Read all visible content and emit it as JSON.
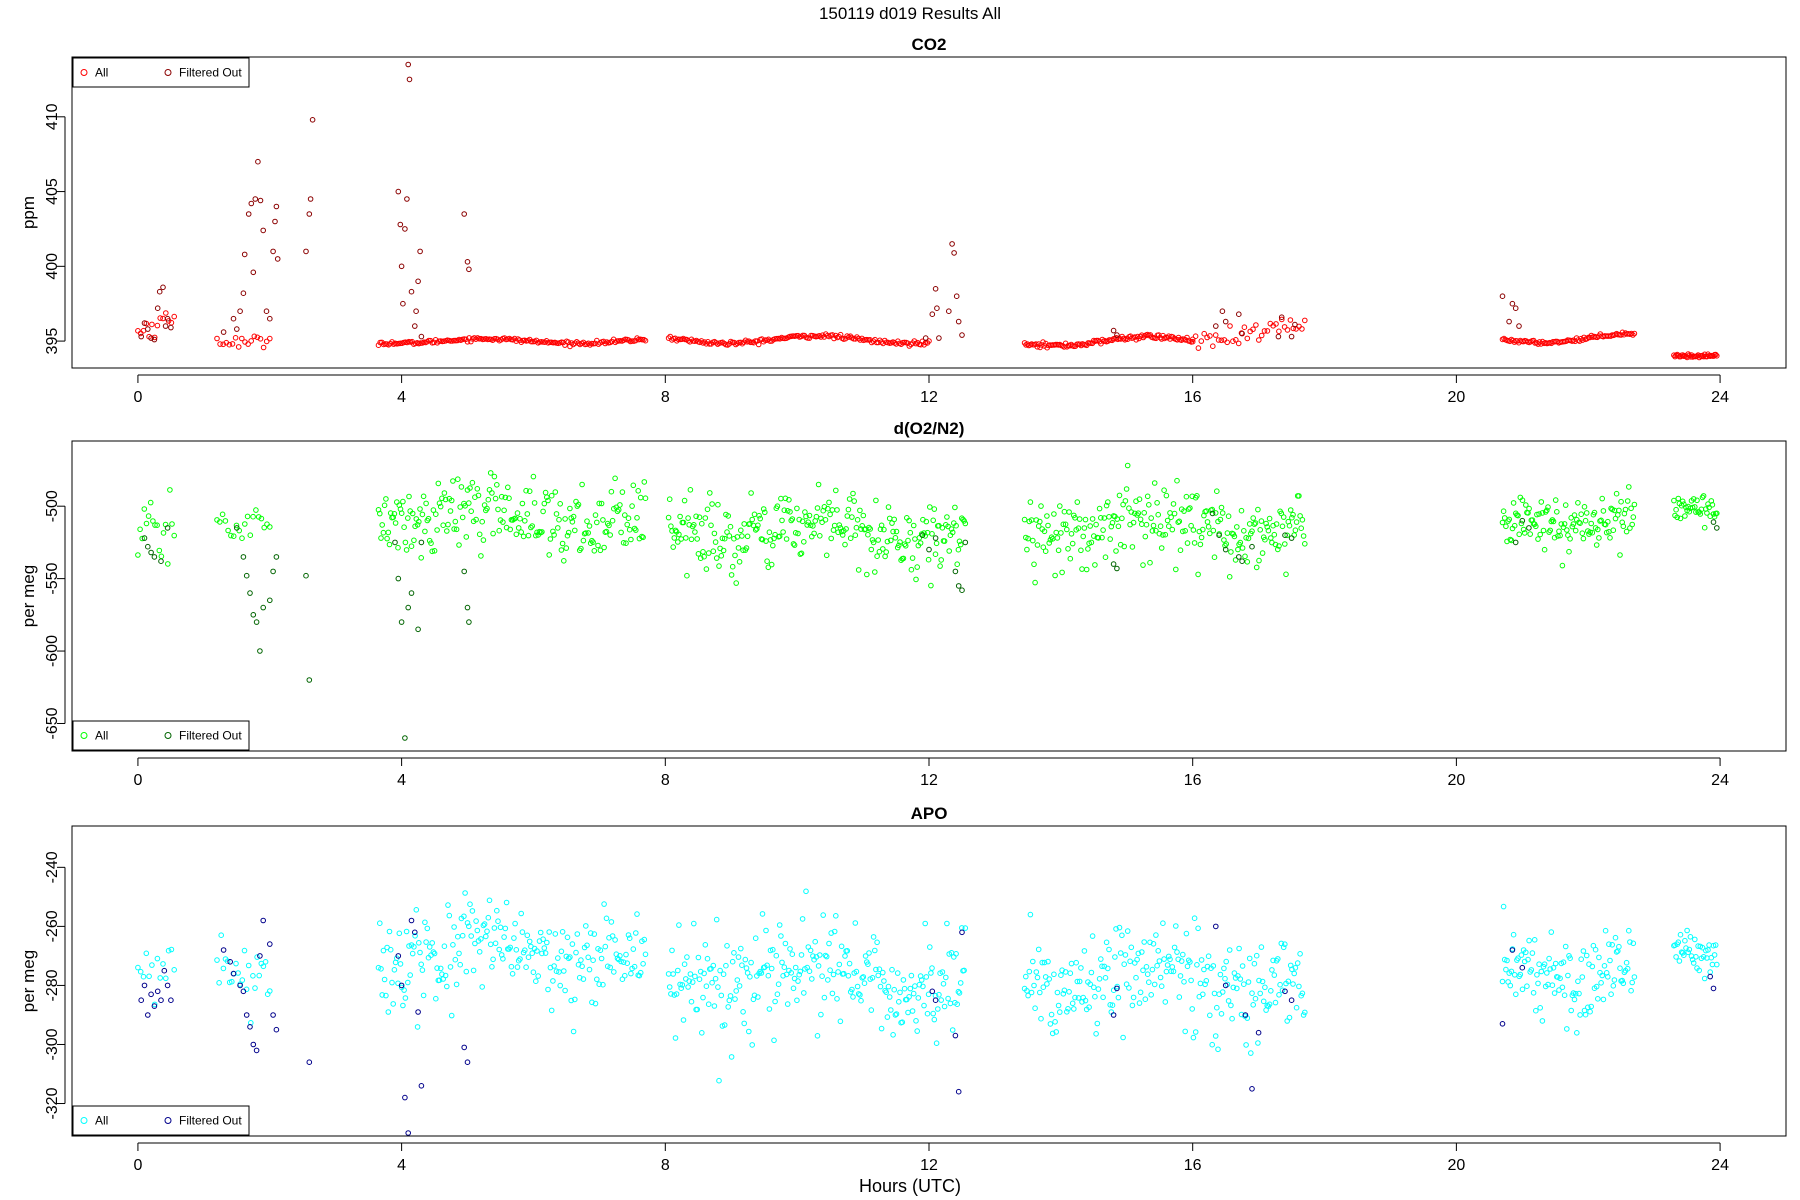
{
  "figure_title": "150119   d019   Results All",
  "x_label": "Hours (UTC)",
  "chart_data": [
    {
      "type": "scatter",
      "title": "CO2",
      "ylabel": "ppm",
      "xlim": [
        -1.0,
        25.0
      ],
      "ylim": [
        393.2,
        414.0
      ],
      "xticks": [
        0,
        4,
        8,
        12,
        16,
        20,
        24
      ],
      "yticks": [
        395,
        400,
        405,
        410
      ],
      "ytick_labels": [
        "395",
        "400",
        "405",
        "410"
      ],
      "legend": {
        "placement": "top-left",
        "entries": [
          "All",
          "Filtered Out"
        ]
      },
      "colors": {
        "all": "#ff0000",
        "filtered": "#8b0000"
      },
      "segments": [
        {
          "t0": 0.0,
          "t1": 0.55,
          "n": 14,
          "base": 395.6,
          "amp": 0.9,
          "noise": 0.4
        },
        {
          "t0": 1.2,
          "t1": 2.0,
          "n": 18,
          "base": 395.3,
          "amp": 0.4,
          "noise": 0.2
        },
        {
          "t0": 3.65,
          "t1": 7.7,
          "n": 160,
          "base": 395.0,
          "amp": 0.15,
          "noise": 0.06
        },
        {
          "t0": 8.05,
          "t1": 12.0,
          "n": 160,
          "base": 395.1,
          "amp": 0.25,
          "noise": 0.07
        },
        {
          "t0": 13.45,
          "t1": 16.0,
          "n": 120,
          "base": 395.0,
          "amp": 0.3,
          "noise": 0.08
        },
        {
          "t0": 16.0,
          "t1": 17.7,
          "n": 40,
          "base": 395.5,
          "amp": 0.5,
          "noise": 0.3
        },
        {
          "t0": 20.7,
          "t1": 22.7,
          "n": 90,
          "base": 395.2,
          "amp": 0.3,
          "noise": 0.06
        },
        {
          "t0": 23.3,
          "t1": 23.95,
          "n": 40,
          "base": 394.2,
          "amp": 0.2,
          "noise": 0.05
        }
      ],
      "filtered": [
        [
          0.05,
          395.3
        ],
        [
          0.1,
          396.2
        ],
        [
          0.15,
          395.8
        ],
        [
          0.2,
          395.2
        ],
        [
          0.25,
          395.1
        ],
        [
          0.3,
          397.2
        ],
        [
          0.33,
          398.3
        ],
        [
          0.38,
          398.6
        ],
        [
          0.42,
          396.0
        ],
        [
          0.45,
          396.5
        ],
        [
          0.5,
          395.9
        ],
        [
          1.3,
          395.6
        ],
        [
          1.45,
          396.5
        ],
        [
          1.5,
          395.8
        ],
        [
          1.55,
          397.0
        ],
        [
          1.6,
          398.2
        ],
        [
          1.62,
          400.8
        ],
        [
          1.68,
          403.5
        ],
        [
          1.72,
          404.2
        ],
        [
          1.75,
          399.6
        ],
        [
          1.78,
          404.5
        ],
        [
          1.82,
          407.0
        ],
        [
          1.86,
          404.4
        ],
        [
          1.9,
          402.4
        ],
        [
          1.95,
          397.0
        ],
        [
          2.0,
          396.5
        ],
        [
          2.05,
          401.0
        ],
        [
          2.08,
          403.0
        ],
        [
          2.1,
          404.0
        ],
        [
          2.12,
          400.5
        ],
        [
          2.55,
          401.0
        ],
        [
          2.6,
          403.5
        ],
        [
          2.62,
          404.5
        ],
        [
          2.65,
          409.8
        ],
        [
          3.95,
          405.0
        ],
        [
          3.98,
          402.8
        ],
        [
          4.0,
          400.0
        ],
        [
          4.02,
          397.5
        ],
        [
          4.05,
          402.5
        ],
        [
          4.08,
          404.5
        ],
        [
          4.1,
          413.5
        ],
        [
          4.12,
          412.5
        ],
        [
          4.15,
          398.3
        ],
        [
          4.2,
          396.0
        ],
        [
          4.22,
          397.0
        ],
        [
          4.25,
          399.0
        ],
        [
          4.28,
          401.0
        ],
        [
          4.3,
          395.3
        ],
        [
          4.95,
          403.5
        ],
        [
          5.0,
          400.3
        ],
        [
          5.02,
          399.8
        ],
        [
          11.95,
          395.2
        ],
        [
          12.05,
          396.8
        ],
        [
          12.1,
          398.5
        ],
        [
          12.12,
          397.2
        ],
        [
          12.15,
          395.2
        ],
        [
          12.3,
          397.0
        ],
        [
          12.35,
          401.5
        ],
        [
          12.38,
          400.9
        ],
        [
          12.42,
          398.0
        ],
        [
          12.45,
          396.3
        ],
        [
          12.5,
          395.4
        ],
        [
          14.8,
          395.7
        ],
        [
          14.85,
          395.4
        ],
        [
          16.35,
          396.0
        ],
        [
          16.45,
          397.0
        ],
        [
          16.5,
          396.3
        ],
        [
          16.7,
          396.8
        ],
        [
          16.75,
          395.5
        ],
        [
          17.3,
          395.3
        ],
        [
          17.35,
          396.6
        ],
        [
          17.5,
          395.3
        ],
        [
          17.55,
          396.1
        ],
        [
          20.7,
          398.0
        ],
        [
          20.8,
          396.3
        ],
        [
          20.85,
          397.5
        ],
        [
          20.9,
          397.2
        ],
        [
          20.95,
          396.0
        ]
      ]
    },
    {
      "type": "scatter",
      "title": "d(O2/N2)",
      "ylabel": "per meg",
      "xlim": [
        -1.0,
        25.0
      ],
      "ylim": [
        -669.0,
        -455.0
      ],
      "xticks": [
        0,
        4,
        8,
        12,
        16,
        20,
        24
      ],
      "yticks": [
        -650,
        -600,
        -550,
        -500
      ],
      "ytick_labels": [
        "-650",
        "-600",
        "-550",
        "-500"
      ],
      "legend": {
        "placement": "bottom-left",
        "entries": [
          "All",
          "Filtered Out"
        ]
      },
      "colors": {
        "all": "#00ff00",
        "filtered": "#006400"
      },
      "segments": [
        {
          "t0": 0.0,
          "t1": 0.55,
          "n": 18,
          "base": -522,
          "amp": 5,
          "noise": 10
        },
        {
          "t0": 1.2,
          "t1": 2.0,
          "n": 20,
          "base": -510,
          "amp": 3,
          "noise": 6
        },
        {
          "t0": 3.65,
          "t1": 7.7,
          "n": 220,
          "base": -507,
          "amp": 6,
          "noise": 12
        },
        {
          "t0": 8.05,
          "t1": 12.55,
          "n": 260,
          "base": -517,
          "amp": 6,
          "noise": 13
        },
        {
          "t0": 13.45,
          "t1": 17.7,
          "n": 240,
          "base": -515,
          "amp": 5,
          "noise": 12
        },
        {
          "t0": 20.7,
          "t1": 22.7,
          "n": 120,
          "base": -510,
          "amp": 5,
          "noise": 9
        },
        {
          "t0": 23.3,
          "t1": 23.95,
          "n": 40,
          "base": -500,
          "amp": 3,
          "noise": 5
        }
      ],
      "filtered": [
        [
          0.1,
          -522
        ],
        [
          0.15,
          -528
        ],
        [
          0.2,
          -532
        ],
        [
          0.25,
          -535
        ],
        [
          0.35,
          -538
        ],
        [
          0.45,
          -515
        ],
        [
          1.5,
          -515
        ],
        [
          1.6,
          -535
        ],
        [
          1.65,
          -548
        ],
        [
          1.7,
          -560
        ],
        [
          1.75,
          -575
        ],
        [
          1.8,
          -580
        ],
        [
          1.85,
          -600
        ],
        [
          1.9,
          -570
        ],
        [
          2.0,
          -565
        ],
        [
          2.05,
          -545
        ],
        [
          2.1,
          -535
        ],
        [
          2.55,
          -548
        ],
        [
          2.6,
          -620
        ],
        [
          3.9,
          -525
        ],
        [
          3.95,
          -550
        ],
        [
          4.0,
          -580
        ],
        [
          4.05,
          -660
        ],
        [
          4.1,
          -570
        ],
        [
          4.15,
          -560
        ],
        [
          4.25,
          -585
        ],
        [
          4.3,
          -525
        ],
        [
          4.95,
          -545
        ],
        [
          5.0,
          -570
        ],
        [
          5.02,
          -580
        ],
        [
          11.9,
          -520
        ],
        [
          12.0,
          -530
        ],
        [
          12.1,
          -522
        ],
        [
          12.4,
          -545
        ],
        [
          12.45,
          -555
        ],
        [
          12.5,
          -558
        ],
        [
          12.55,
          -525
        ],
        [
          14.8,
          -540
        ],
        [
          14.85,
          -543
        ],
        [
          16.3,
          -505
        ],
        [
          16.4,
          -520
        ],
        [
          16.5,
          -530
        ],
        [
          16.7,
          -535
        ],
        [
          16.75,
          -538
        ],
        [
          16.9,
          -528
        ],
        [
          17.4,
          -520
        ],
        [
          17.5,
          -522
        ],
        [
          20.9,
          -525
        ],
        [
          21.0,
          -510
        ],
        [
          21.1,
          -515
        ],
        [
          23.9,
          -511
        ],
        [
          23.95,
          -515
        ]
      ]
    },
    {
      "type": "scatter",
      "title": "APO",
      "ylabel": "per meg",
      "xlim": [
        -1.0,
        25.0
      ],
      "ylim": [
        -331.0,
        -226.0
      ],
      "xticks": [
        0,
        4,
        8,
        12,
        16,
        20,
        24
      ],
      "yticks": [
        -320,
        -300,
        -280,
        -260,
        -240
      ],
      "ytick_labels": [
        "-320",
        "-300",
        "-280",
        "-260",
        "-240"
      ],
      "legend": {
        "placement": "bottom-left",
        "entries": [
          "All",
          "Filtered Out"
        ]
      },
      "colors": {
        "all": "#00ffff",
        "filtered": "#00008b"
      },
      "segments": [
        {
          "t0": 0.0,
          "t1": 0.55,
          "n": 14,
          "base": -278,
          "amp": 3,
          "noise": 5
        },
        {
          "t0": 1.2,
          "t1": 2.0,
          "n": 26,
          "base": -272,
          "amp": 3,
          "noise": 5
        },
        {
          "t0": 3.65,
          "t1": 7.7,
          "n": 220,
          "base": -270,
          "amp": 4,
          "noise": 8
        },
        {
          "t0": 8.05,
          "t1": 12.55,
          "n": 260,
          "base": -278,
          "amp": 4,
          "noise": 9
        },
        {
          "t0": 13.45,
          "t1": 17.7,
          "n": 240,
          "base": -278,
          "amp": 4,
          "noise": 9
        },
        {
          "t0": 20.7,
          "t1": 22.7,
          "n": 120,
          "base": -274,
          "amp": 3,
          "noise": 7
        },
        {
          "t0": 23.3,
          "t1": 23.95,
          "n": 40,
          "base": -268,
          "amp": 3,
          "noise": 4
        }
      ],
      "filtered": [
        [
          0.05,
          -285
        ],
        [
          0.1,
          -280
        ],
        [
          0.15,
          -290
        ],
        [
          0.2,
          -283
        ],
        [
          0.25,
          -287
        ],
        [
          0.3,
          -282
        ],
        [
          0.35,
          -285
        ],
        [
          0.4,
          -275
        ],
        [
          0.45,
          -280
        ],
        [
          0.5,
          -285
        ],
        [
          1.3,
          -268
        ],
        [
          1.4,
          -272
        ],
        [
          1.45,
          -276
        ],
        [
          1.55,
          -280
        ],
        [
          1.6,
          -282
        ],
        [
          1.65,
          -290
        ],
        [
          1.7,
          -294
        ],
        [
          1.75,
          -300
        ],
        [
          1.8,
          -302
        ],
        [
          1.85,
          -270
        ],
        [
          1.9,
          -258
        ],
        [
          2.0,
          -266
        ],
        [
          2.05,
          -290
        ],
        [
          2.1,
          -295
        ],
        [
          2.6,
          -306
        ],
        [
          3.95,
          -270
        ],
        [
          4.0,
          -280
        ],
        [
          4.05,
          -318
        ],
        [
          4.1,
          -330
        ],
        [
          4.15,
          -258
        ],
        [
          4.2,
          -262
        ],
        [
          4.25,
          -289
        ],
        [
          4.3,
          -314
        ],
        [
          4.95,
          -301
        ],
        [
          5.0,
          -306
        ],
        [
          12.05,
          -282
        ],
        [
          12.1,
          -285
        ],
        [
          12.4,
          -297
        ],
        [
          12.45,
          -316
        ],
        [
          12.5,
          -262
        ],
        [
          14.8,
          -290
        ],
        [
          14.85,
          -281
        ],
        [
          16.35,
          -260
        ],
        [
          16.5,
          -280
        ],
        [
          16.8,
          -290
        ],
        [
          16.9,
          -315
        ],
        [
          17.0,
          -296
        ],
        [
          17.4,
          -282
        ],
        [
          17.5,
          -285
        ],
        [
          20.7,
          -293
        ],
        [
          20.85,
          -268
        ],
        [
          21.0,
          -274
        ],
        [
          23.85,
          -277
        ],
        [
          23.9,
          -281
        ]
      ]
    }
  ]
}
